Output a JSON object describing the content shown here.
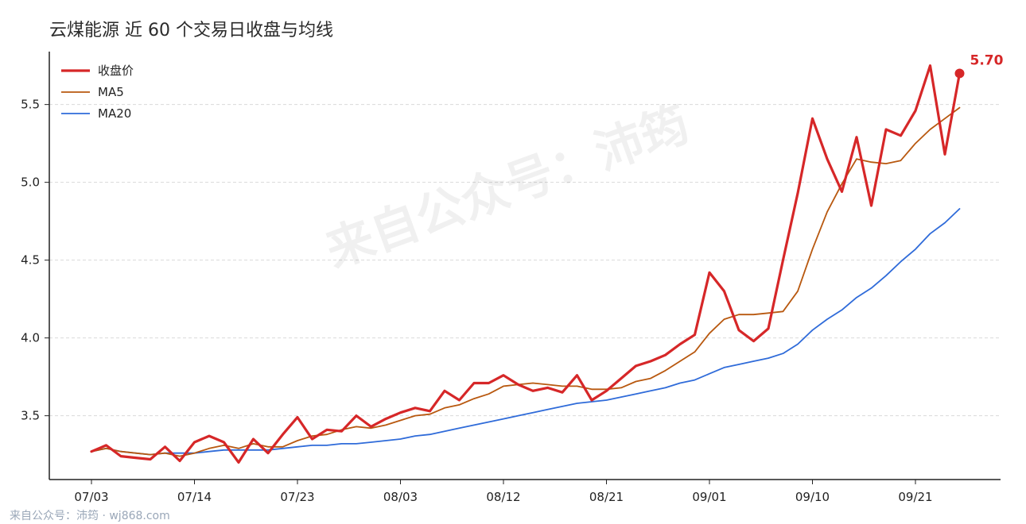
{
  "chart_data": {
    "type": "line",
    "title": "云煤能源 近 60 个交易日收盘与均线",
    "xlabel": "",
    "ylabel": "",
    "ylim": [
      3.09,
      5.84
    ],
    "y_ticks": [
      3.5,
      4.0,
      4.5,
      5.0,
      5.5
    ],
    "y_tick_labels": [
      "3.5",
      "4.0",
      "4.5",
      "5.0",
      "5.5"
    ],
    "x_tick_labels": [
      "07/03",
      "07/14",
      "07/23",
      "08/03",
      "08/12",
      "08/21",
      "09/01",
      "09/10",
      "09/21"
    ],
    "x_tick_index": [
      0,
      7,
      14,
      21,
      28,
      35,
      42,
      49,
      56
    ],
    "grid": "horizontal dashed",
    "legend_position": "top-left",
    "series": [
      {
        "name": "收盘价",
        "color": "#d62728",
        "values": [
          3.27,
          3.31,
          3.24,
          3.23,
          3.22,
          3.3,
          3.21,
          3.33,
          3.37,
          3.33,
          3.2,
          3.35,
          3.26,
          3.38,
          3.49,
          3.35,
          3.41,
          3.4,
          3.5,
          3.43,
          3.48,
          3.52,
          3.55,
          3.53,
          3.66,
          3.6,
          3.71,
          3.71,
          3.76,
          3.7,
          3.66,
          3.68,
          3.65,
          3.76,
          3.6,
          3.66,
          3.74,
          3.82,
          3.85,
          3.89,
          3.96,
          4.02,
          4.42,
          4.3,
          4.05,
          3.98,
          4.06,
          4.5,
          4.93,
          5.41,
          5.15,
          4.94,
          5.29,
          4.85,
          5.34,
          5.3,
          5.46,
          5.75,
          5.18,
          5.7
        ]
      },
      {
        "name": "MA5",
        "color": "#b8580f",
        "values": [
          3.27,
          3.29,
          3.27,
          3.26,
          3.25,
          3.26,
          3.24,
          3.26,
          3.29,
          3.31,
          3.29,
          3.32,
          3.3,
          3.3,
          3.34,
          3.37,
          3.38,
          3.41,
          3.43,
          3.42,
          3.44,
          3.47,
          3.5,
          3.51,
          3.55,
          3.57,
          3.61,
          3.64,
          3.69,
          3.7,
          3.71,
          3.7,
          3.69,
          3.69,
          3.67,
          3.67,
          3.68,
          3.72,
          3.74,
          3.79,
          3.85,
          3.91,
          4.03,
          4.12,
          4.15,
          4.15,
          4.16,
          4.17,
          4.3,
          4.57,
          4.81,
          4.99,
          5.15,
          5.13,
          5.12,
          5.14,
          5.25,
          5.34,
          5.41,
          5.48
        ]
      },
      {
        "name": "MA20",
        "color": "#2f6bd9",
        "values": [
          3.27,
          3.29,
          3.27,
          3.26,
          3.25,
          3.26,
          3.26,
          3.26,
          3.27,
          3.28,
          3.28,
          3.28,
          3.28,
          3.29,
          3.3,
          3.31,
          3.31,
          3.32,
          3.32,
          3.33,
          3.34,
          3.35,
          3.37,
          3.38,
          3.4,
          3.42,
          3.44,
          3.46,
          3.48,
          3.5,
          3.52,
          3.54,
          3.56,
          3.58,
          3.59,
          3.6,
          3.62,
          3.64,
          3.66,
          3.68,
          3.71,
          3.73,
          3.77,
          3.81,
          3.83,
          3.85,
          3.87,
          3.9,
          3.96,
          4.05,
          4.12,
          4.18,
          4.26,
          4.32,
          4.4,
          4.49,
          4.57,
          4.67,
          4.74,
          4.83
        ]
      }
    ],
    "last_value_label": "5.70"
  },
  "watermark": "来自公众号：沛筠",
  "source": "来自公众号：沛筠 · wj868.com"
}
